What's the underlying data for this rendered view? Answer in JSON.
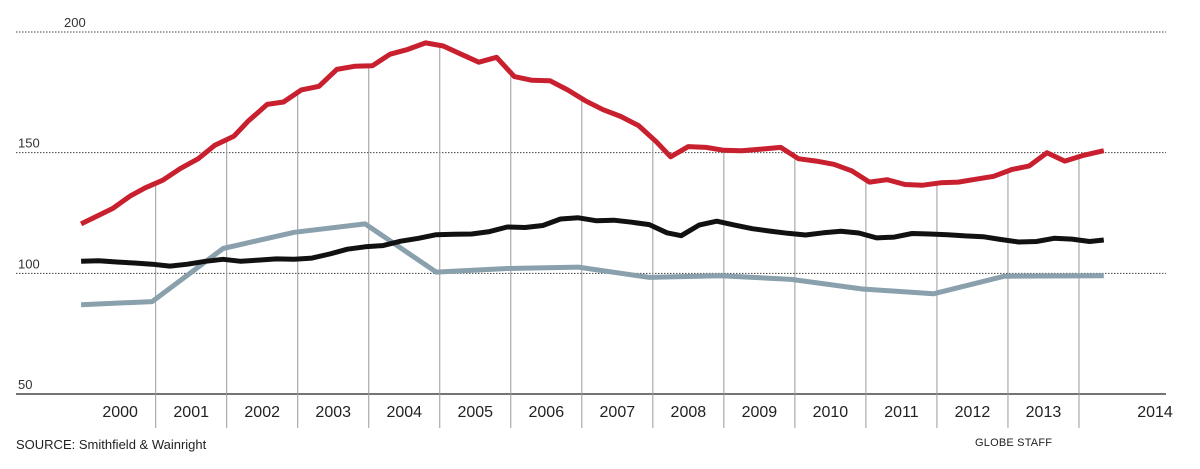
{
  "chart_data": {
    "type": "line",
    "title": "",
    "xlabel": "",
    "ylabel": "",
    "ylim": [
      50,
      200
    ],
    "xlim": [
      1999.35,
      2014.5
    ],
    "grid": "horizontal dotted at y ticks; vertical year separators",
    "y_ticks": [
      {
        "value": 200,
        "label": "200"
      },
      {
        "value": 150,
        "label": "150"
      },
      {
        "value": 100,
        "label": "100"
      },
      {
        "value": 50,
        "label": "50"
      }
    ],
    "year_separators": [
      2000.5,
      2001.5,
      2002.5,
      2003.5,
      2004.5,
      2005.5,
      2006.5,
      2007.5,
      2008.5,
      2009.5,
      2010.5,
      2011.5,
      2012.5,
      2013.5
    ],
    "x_ticks": [
      {
        "value": 2000,
        "label": "2000"
      },
      {
        "value": 2001,
        "label": "2001"
      },
      {
        "value": 2002,
        "label": "2002"
      },
      {
        "value": 2003,
        "label": "2003"
      },
      {
        "value": 2004,
        "label": "2004"
      },
      {
        "value": 2005,
        "label": "2005"
      },
      {
        "value": 2006,
        "label": "2006"
      },
      {
        "value": 2007,
        "label": "2007"
      },
      {
        "value": 2008,
        "label": "2008"
      },
      {
        "value": 2009,
        "label": "2009"
      },
      {
        "value": 2010,
        "label": "2010"
      },
      {
        "value": 2011,
        "label": "2011"
      },
      {
        "value": 2012,
        "label": "2012"
      },
      {
        "value": 2013,
        "label": "2013"
      },
      {
        "value": 2014,
        "label": "2014"
      }
    ],
    "series": [
      {
        "color": "#c8202f",
        "points": [
          [
            1999.45,
            120.5
          ],
          [
            1999.66,
            123.5
          ],
          [
            1999.9,
            127
          ],
          [
            2000.14,
            132
          ],
          [
            2000.35,
            135.4
          ],
          [
            2000.6,
            138.6
          ],
          [
            2000.85,
            143.5
          ],
          [
            2001.1,
            147.5
          ],
          [
            2001.33,
            153
          ],
          [
            2001.6,
            156.8
          ],
          [
            2001.8,
            163
          ],
          [
            2002.07,
            170
          ],
          [
            2002.3,
            171
          ],
          [
            2002.55,
            176
          ],
          [
            2002.8,
            177.5
          ],
          [
            2003.05,
            184.5
          ],
          [
            2003.3,
            185.8
          ],
          [
            2003.55,
            186
          ],
          [
            2003.8,
            190.8
          ],
          [
            2004.05,
            192.8
          ],
          [
            2004.3,
            195.5
          ],
          [
            2004.55,
            194.2
          ],
          [
            2004.8,
            190.8
          ],
          [
            2005.05,
            187.5
          ],
          [
            2005.3,
            189.5
          ],
          [
            2005.55,
            181.5
          ],
          [
            2005.8,
            180
          ],
          [
            2006.05,
            179.8
          ],
          [
            2006.3,
            176
          ],
          [
            2006.55,
            171.5
          ],
          [
            2006.8,
            167.8
          ],
          [
            2007.05,
            165
          ],
          [
            2007.3,
            161.2
          ],
          [
            2007.55,
            154.5
          ],
          [
            2007.75,
            148.3
          ],
          [
            2008.0,
            152.5
          ],
          [
            2008.25,
            152.2
          ],
          [
            2008.5,
            151
          ],
          [
            2008.75,
            150.8
          ],
          [
            2009.05,
            151.5
          ],
          [
            2009.3,
            152.2
          ],
          [
            2009.55,
            147.5
          ],
          [
            2009.8,
            146.5
          ],
          [
            2010.05,
            145.2
          ],
          [
            2010.3,
            142.5
          ],
          [
            2010.55,
            137.8
          ],
          [
            2010.8,
            138.8
          ],
          [
            2011.05,
            136.8
          ],
          [
            2011.3,
            136.5
          ],
          [
            2011.55,
            137.5
          ],
          [
            2011.8,
            137.8
          ],
          [
            2012.05,
            139
          ],
          [
            2012.3,
            140.2
          ],
          [
            2012.55,
            143
          ],
          [
            2012.8,
            144.5
          ],
          [
            2013.05,
            150
          ],
          [
            2013.3,
            146.5
          ],
          [
            2013.55,
            148.8
          ],
          [
            2013.85,
            150.8
          ]
        ]
      },
      {
        "color": "#111111",
        "points": [
          [
            1999.45,
            105
          ],
          [
            1999.7,
            105.2
          ],
          [
            1999.95,
            104.7
          ],
          [
            2000.2,
            104.3
          ],
          [
            2000.45,
            103.8
          ],
          [
            2000.7,
            103
          ],
          [
            2000.95,
            103.8
          ],
          [
            2001.2,
            105
          ],
          [
            2001.45,
            105.8
          ],
          [
            2001.7,
            105
          ],
          [
            2001.95,
            105.5
          ],
          [
            2002.2,
            106
          ],
          [
            2002.45,
            105.8
          ],
          [
            2002.7,
            106.3
          ],
          [
            2002.95,
            108
          ],
          [
            2003.2,
            110
          ],
          [
            2003.45,
            111
          ],
          [
            2003.7,
            111.5
          ],
          [
            2003.95,
            113.3
          ],
          [
            2004.2,
            114.5
          ],
          [
            2004.45,
            116
          ],
          [
            2004.7,
            116.2
          ],
          [
            2004.95,
            116.3
          ],
          [
            2005.2,
            117.3
          ],
          [
            2005.45,
            119.2
          ],
          [
            2005.7,
            119
          ],
          [
            2005.95,
            119.8
          ],
          [
            2006.2,
            122.5
          ],
          [
            2006.45,
            123
          ],
          [
            2006.7,
            121.8
          ],
          [
            2006.95,
            122
          ],
          [
            2007.2,
            121.2
          ],
          [
            2007.45,
            120.2
          ],
          [
            2007.7,
            116.8
          ],
          [
            2007.9,
            115.6
          ],
          [
            2008.15,
            120
          ],
          [
            2008.4,
            121.6
          ],
          [
            2008.65,
            120
          ],
          [
            2008.9,
            118.5
          ],
          [
            2009.15,
            117.5
          ],
          [
            2009.4,
            116.6
          ],
          [
            2009.65,
            115.9
          ],
          [
            2009.9,
            116.8
          ],
          [
            2010.15,
            117.4
          ],
          [
            2010.4,
            116.7
          ],
          [
            2010.65,
            114.7
          ],
          [
            2010.9,
            115
          ],
          [
            2011.15,
            116.5
          ],
          [
            2011.4,
            116.3
          ],
          [
            2011.65,
            116
          ],
          [
            2011.9,
            115.5
          ],
          [
            2012.15,
            115.2
          ],
          [
            2012.4,
            114
          ],
          [
            2012.65,
            113
          ],
          [
            2012.9,
            113.2
          ],
          [
            2013.15,
            114.5
          ],
          [
            2013.4,
            114.2
          ],
          [
            2013.65,
            113.2
          ],
          [
            2013.85,
            113.8
          ]
        ]
      },
      {
        "color": "#8aa0ac",
        "points": [
          [
            1999.45,
            87
          ],
          [
            2000.45,
            88.3
          ],
          [
            2001.45,
            110.3
          ],
          [
            2002.45,
            117
          ],
          [
            2003.45,
            120.5
          ],
          [
            2004.45,
            100.5
          ],
          [
            2005.45,
            102
          ],
          [
            2006.45,
            102.6
          ],
          [
            2007.45,
            98.3
          ],
          [
            2008.45,
            99
          ],
          [
            2009.45,
            97.5
          ],
          [
            2010.45,
            93.5
          ],
          [
            2011.45,
            91.5
          ],
          [
            2012.45,
            98.8
          ],
          [
            2013.85,
            99
          ]
        ]
      }
    ]
  },
  "footer": {
    "source": "SOURCE: Smithfield & Wainright",
    "credit": "GLOBE STAFF"
  },
  "colors": {
    "grid_dotted": "#444444",
    "separator": "#9a9a9a",
    "axis": "#222222"
  }
}
